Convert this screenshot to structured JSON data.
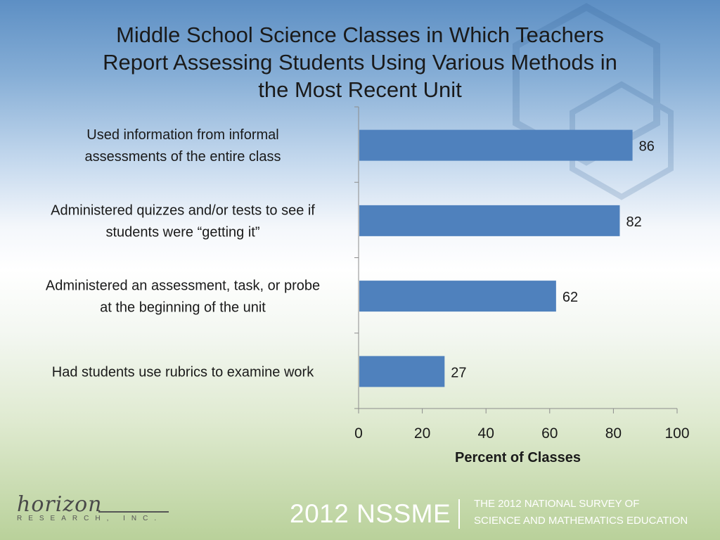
{
  "title_lines": [
    "Middle School Science Classes in Which Teachers",
    "Report Assessing Students Using Various Methods in",
    "the Most Recent Unit"
  ],
  "chart_data": {
    "type": "bar",
    "orientation": "horizontal",
    "title": "Middle School Science Classes in Which Teachers Report Assessing Students Using Various Methods in the Most Recent Unit",
    "categories": [
      "Used information from informal assessments of the entire class",
      "Administered quizzes and/or tests to see if students were “getting it”",
      "Administered an assessment, task, or probe at the beginning of the unit",
      "Had students use rubrics to examine work"
    ],
    "category_label_lines": [
      [
        "Used information from informal",
        "assessments of the entire class"
      ],
      [
        "Administered quizzes and/or tests to see if",
        "students were “getting it”"
      ],
      [
        "Administered an assessment, task, or probe",
        "at the beginning of the unit"
      ],
      [
        "Had students use rubrics to examine work"
      ]
    ],
    "values": [
      86,
      82,
      62,
      27
    ],
    "data_labels": [
      "86",
      "82",
      "62",
      "27"
    ],
    "xlabel": "Percent of Classes",
    "ylabel": "",
    "xlim": [
      0,
      100
    ],
    "xticks": [
      0,
      20,
      40,
      60,
      80,
      100
    ],
    "grid": false,
    "legend": "none",
    "bar_color": "#4f81bd"
  },
  "footer": {
    "logo_word": "horizon",
    "logo_sub": "RESEARCH, INC.",
    "survey_year": "2012 NSSME",
    "survey_name_line1": "THE 2012 NATIONAL SURVEY OF",
    "survey_name_line2": "SCIENCE AND MATHEMATICS EDUCATION"
  }
}
